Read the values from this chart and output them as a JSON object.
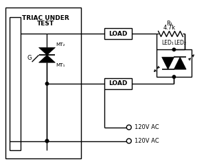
{
  "fig_width": 3.0,
  "fig_height": 2.42,
  "dpi": 100,
  "bg_color": "#ffffff",
  "lc": "#000000",
  "lw": 1.0,
  "triac_box_label1": "TRIAC UNDER",
  "triac_box_label2": "TEST",
  "r1_label": "R₁",
  "r1_val": "4.7k",
  "led1_label": "LED₁",
  "led2_label": "LED₂",
  "load_label": "LOAD",
  "mt1_label": "MT₁",
  "mt2_label": "MT₂",
  "g_label": "G",
  "ac_label": "120V AC"
}
